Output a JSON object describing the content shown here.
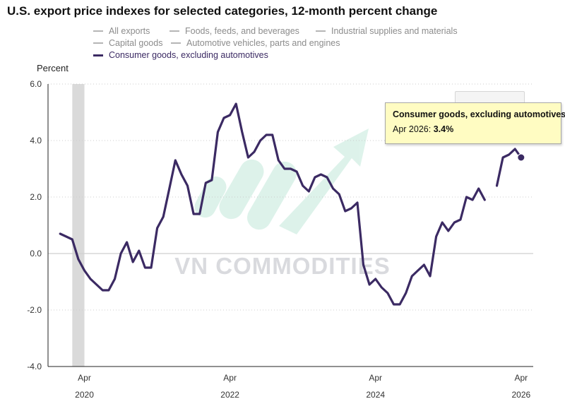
{
  "chart_data": {
    "type": "line",
    "title": "U.S. export price indexes for selected categories, 12-month percent change",
    "ylabel": "Percent",
    "xlabel": "",
    "ylim": [
      -4.0,
      6.0
    ],
    "yticks": [
      "6.0",
      "4.0",
      "2.0",
      "0.0",
      "-2.0",
      "-4.0"
    ],
    "xticks": [
      {
        "month": "Apr",
        "year": "2020",
        "date": "2020-04"
      },
      {
        "month": "Apr",
        "year": "2022",
        "date": "2022-04"
      },
      {
        "month": "Apr",
        "year": "2024",
        "date": "2024-04"
      },
      {
        "month": "Apr",
        "year": "2026",
        "date": "2026-04"
      }
    ],
    "x_range": [
      "2019-10",
      "2026-06"
    ],
    "recession_band": [
      "2020-02",
      "2020-04"
    ],
    "grid": "horizontal dotted",
    "legend": {
      "placement": "top",
      "items": [
        {
          "label": "All exports",
          "active": false
        },
        {
          "label": "Foods, feeds, and beverages",
          "active": false
        },
        {
          "label": "Industrial supplies and materials",
          "active": false
        },
        {
          "label": "Capital goods",
          "active": false
        },
        {
          "label": "Automotive vehicles, parts and engines",
          "active": false
        },
        {
          "label": "Consumer goods, excluding automotives",
          "active": true
        }
      ]
    },
    "series": [
      {
        "name": "Consumer goods, excluding automotives",
        "color": "#3b2a63",
        "points": [
          [
            "2019-12",
            0.7
          ],
          [
            "2020-01",
            0.6
          ],
          [
            "2020-02",
            0.5
          ],
          [
            "2020-03",
            -0.2
          ],
          [
            "2020-04",
            -0.6
          ],
          [
            "2020-05",
            -0.9
          ],
          [
            "2020-06",
            -1.1
          ],
          [
            "2020-07",
            -1.3
          ],
          [
            "2020-08",
            -1.3
          ],
          [
            "2020-09",
            -0.9
          ],
          [
            "2020-10",
            0.0
          ],
          [
            "2020-11",
            0.4
          ],
          [
            "2020-12",
            -0.3
          ],
          [
            "2021-01",
            0.1
          ],
          [
            "2021-02",
            -0.5
          ],
          [
            "2021-03",
            -0.5
          ],
          [
            "2021-04",
            0.9
          ],
          [
            "2021-05",
            1.3
          ],
          [
            "2021-06",
            2.3
          ],
          [
            "2021-07",
            3.3
          ],
          [
            "2021-08",
            2.8
          ],
          [
            "2021-09",
            2.4
          ],
          [
            "2021-10",
            1.4
          ],
          [
            "2021-11",
            1.4
          ],
          [
            "2021-12",
            2.5
          ],
          [
            "2022-01",
            2.6
          ],
          [
            "2022-02",
            4.3
          ],
          [
            "2022-03",
            4.8
          ],
          [
            "2022-04",
            4.9
          ],
          [
            "2022-05",
            5.3
          ],
          [
            "2022-06",
            4.3
          ],
          [
            "2022-07",
            3.4
          ],
          [
            "2022-08",
            3.6
          ],
          [
            "2022-09",
            4.0
          ],
          [
            "2022-10",
            4.2
          ],
          [
            "2022-11",
            4.2
          ],
          [
            "2022-12",
            3.3
          ],
          [
            "2023-01",
            3.0
          ],
          [
            "2023-02",
            3.0
          ],
          [
            "2023-03",
            2.9
          ],
          [
            "2023-04",
            2.4
          ],
          [
            "2023-05",
            2.2
          ],
          [
            "2023-06",
            2.7
          ],
          [
            "2023-07",
            2.8
          ],
          [
            "2023-08",
            2.7
          ],
          [
            "2023-09",
            2.3
          ],
          [
            "2023-10",
            2.1
          ],
          [
            "2023-11",
            1.5
          ],
          [
            "2023-12",
            1.6
          ],
          [
            "2024-01",
            1.8
          ],
          [
            "2024-02",
            -0.4
          ],
          [
            "2024-03",
            -1.1
          ],
          [
            "2024-04",
            -0.9
          ],
          [
            "2024-05",
            -1.2
          ],
          [
            "2024-06",
            -1.4
          ],
          [
            "2024-07",
            -1.8
          ],
          [
            "2024-08",
            -1.8
          ],
          [
            "2024-09",
            -1.4
          ],
          [
            "2024-10",
            -0.8
          ],
          [
            "2024-11",
            -0.6
          ],
          [
            "2024-12",
            -0.4
          ],
          [
            "2025-01",
            -0.8
          ],
          [
            "2025-02",
            0.6
          ],
          [
            "2025-03",
            1.1
          ],
          [
            "2025-04",
            0.8
          ],
          [
            "2025-05",
            1.1
          ],
          [
            "2025-06",
            1.2
          ],
          [
            "2025-07",
            2.0
          ],
          [
            "2025-08",
            1.9
          ],
          [
            "2025-09",
            2.3
          ],
          [
            "2025-10",
            1.9
          ],
          [
            "2025-11",
            null
          ],
          [
            "2025-12",
            2.4
          ],
          [
            "2026-01",
            3.4
          ],
          [
            "2026-02",
            3.5
          ],
          [
            "2026-03",
            3.7
          ],
          [
            "2026-04",
            3.4
          ]
        ]
      }
    ],
    "highlight": {
      "series": "Consumer goods, excluding automotives",
      "date": "2026-04",
      "value": 3.4
    }
  },
  "tooltip": {
    "series": "Consumer goods, excluding automotives",
    "label": "Apr 2026: ",
    "value": "3.4%"
  },
  "watermark": {
    "text": "VN COMMODITIES"
  }
}
